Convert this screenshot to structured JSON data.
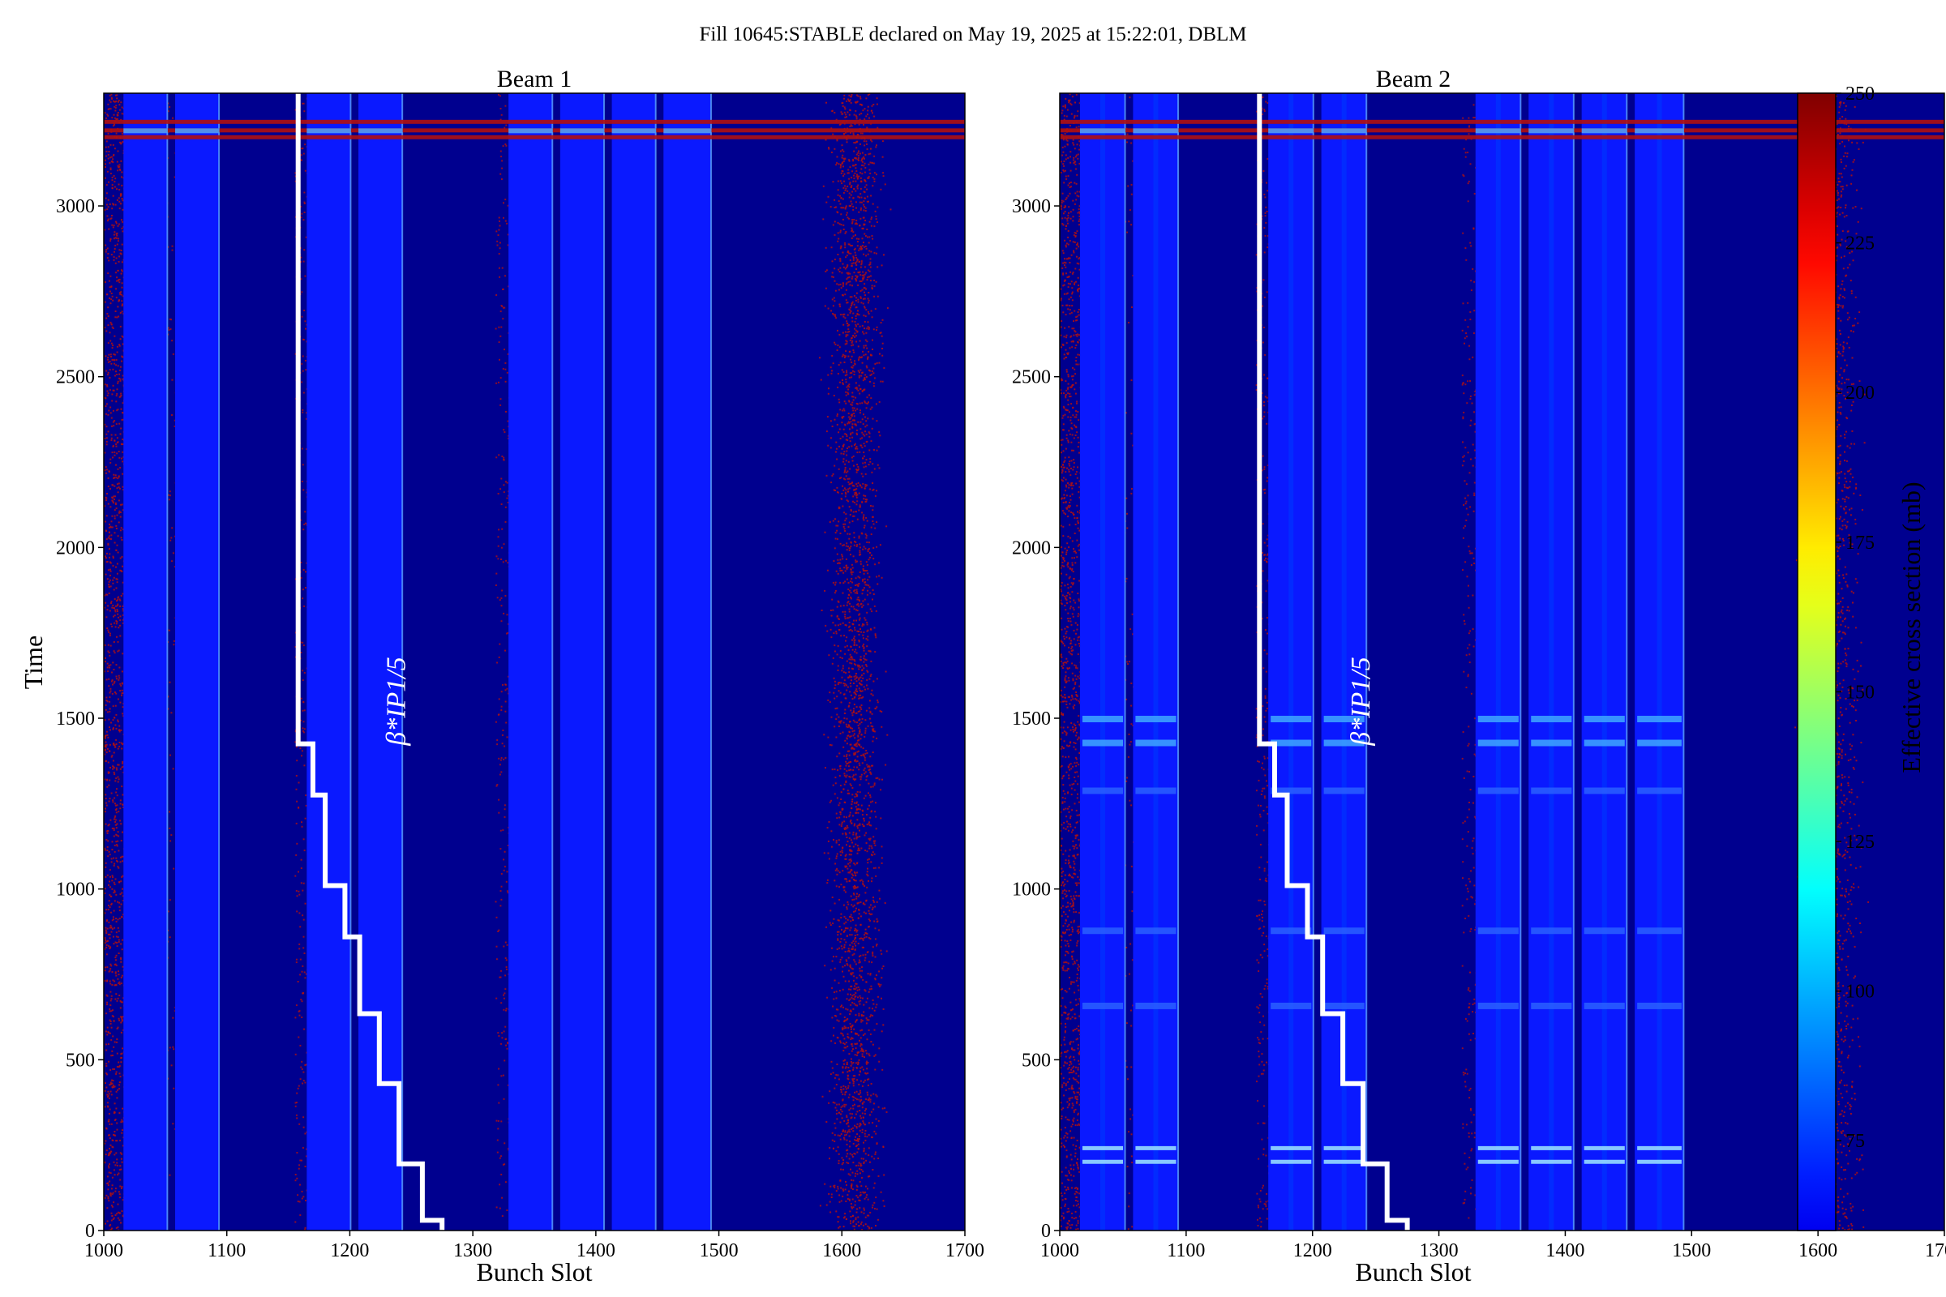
{
  "suptitle": "Fill 10645:STABLE declared on May 19, 2025 at 15:22:01, DBLM",
  "colors": {
    "background": "#00008f",
    "train": "#0a19ff",
    "noise": "#b01010",
    "beta_line": "#ffffff"
  },
  "colorbar": {
    "label": "Effective cross section (mb)",
    "vmin": 60,
    "vmax": 250,
    "ticks": [
      "75",
      "100",
      "125",
      "150",
      "175",
      "200",
      "225",
      "250"
    ],
    "tick_values": [
      75,
      100,
      125,
      150,
      175,
      200,
      225,
      250
    ],
    "colormap": "jet"
  },
  "annotation_beta": "β*IP1/5",
  "chart_data": [
    {
      "type": "heatmap",
      "title": "Beam 1",
      "xlabel": "Bunch Slot",
      "ylabel": "Time",
      "xlim": [
        1000,
        1700
      ],
      "ylim": [
        0,
        3330
      ],
      "x_ticks": [
        "1000",
        "1100",
        "1200",
        "1300",
        "1400",
        "1500",
        "1600",
        "1700"
      ],
      "x_tick_values": [
        1000,
        1100,
        1200,
        1300,
        1400,
        1500,
        1600,
        1700
      ],
      "y_ticks": [
        "0",
        "500",
        "1000",
        "1500",
        "2000",
        "2500",
        "3000"
      ],
      "y_tick_values": [
        0,
        500,
        1000,
        1500,
        2000,
        2500,
        3000
      ],
      "filled_trains": [
        [
          1016,
          1052
        ],
        [
          1058,
          1094
        ],
        [
          1165,
          1201
        ],
        [
          1207,
          1243
        ],
        [
          1329,
          1365
        ],
        [
          1371,
          1407
        ],
        [
          1413,
          1449
        ],
        [
          1455,
          1494
        ]
      ],
      "noise_regions": [
        [
          1000,
          1016,
          0.7
        ],
        [
          1580,
          1640,
          0.45
        ]
      ],
      "high_rows": [
        3200,
        3220,
        3245
      ],
      "beta_star_steps": [
        [
          1275,
          0
        ],
        [
          1275,
          30
        ],
        [
          1259,
          30
        ],
        [
          1259,
          195
        ],
        [
          1240,
          195
        ],
        [
          1240,
          430
        ],
        [
          1224,
          430
        ],
        [
          1224,
          635
        ],
        [
          1208,
          635
        ],
        [
          1208,
          860
        ],
        [
          1196,
          860
        ],
        [
          1196,
          1010
        ],
        [
          1180,
          1010
        ],
        [
          1180,
          1275
        ],
        [
          1170,
          1275
        ],
        [
          1170,
          1425
        ],
        [
          1158,
          1425
        ],
        [
          1158,
          3330
        ]
      ]
    },
    {
      "type": "heatmap",
      "title": "Beam 2",
      "xlabel": "Bunch Slot",
      "ylabel": "",
      "xlim": [
        1000,
        1700
      ],
      "ylim": [
        0,
        3330
      ],
      "x_ticks": [
        "1000",
        "1100",
        "1200",
        "1300",
        "1400",
        "1500",
        "1600",
        "1700"
      ],
      "x_tick_values": [
        1000,
        1100,
        1200,
        1300,
        1400,
        1500,
        1600,
        1700
      ],
      "y_ticks": [
        "0",
        "500",
        "1000",
        "1500",
        "2000",
        "2500",
        "3000"
      ],
      "y_tick_values": [
        0,
        500,
        1000,
        1500,
        2000,
        2500,
        3000
      ],
      "filled_trains": [
        [
          1016,
          1052
        ],
        [
          1058,
          1094
        ],
        [
          1165,
          1201
        ],
        [
          1207,
          1243
        ],
        [
          1329,
          1365
        ],
        [
          1371,
          1407
        ],
        [
          1413,
          1449
        ],
        [
          1455,
          1494
        ]
      ],
      "noise_regions": [
        [
          1000,
          1016,
          0.7
        ],
        [
          1580,
          1640,
          0.3
        ]
      ],
      "high_rows": [
        3200,
        3220,
        3245
      ],
      "bright_rows": [
        200,
        240,
        1430,
        1500,
        880,
        660,
        1290
      ],
      "beta_star_steps": [
        [
          1275,
          0
        ],
        [
          1275,
          30
        ],
        [
          1259,
          30
        ],
        [
          1259,
          195
        ],
        [
          1240,
          195
        ],
        [
          1240,
          430
        ],
        [
          1224,
          430
        ],
        [
          1224,
          635
        ],
        [
          1208,
          635
        ],
        [
          1208,
          860
        ],
        [
          1196,
          860
        ],
        [
          1196,
          1010
        ],
        [
          1180,
          1010
        ],
        [
          1180,
          1275
        ],
        [
          1170,
          1275
        ],
        [
          1170,
          1425
        ],
        [
          1158,
          1425
        ],
        [
          1158,
          3330
        ]
      ]
    }
  ]
}
